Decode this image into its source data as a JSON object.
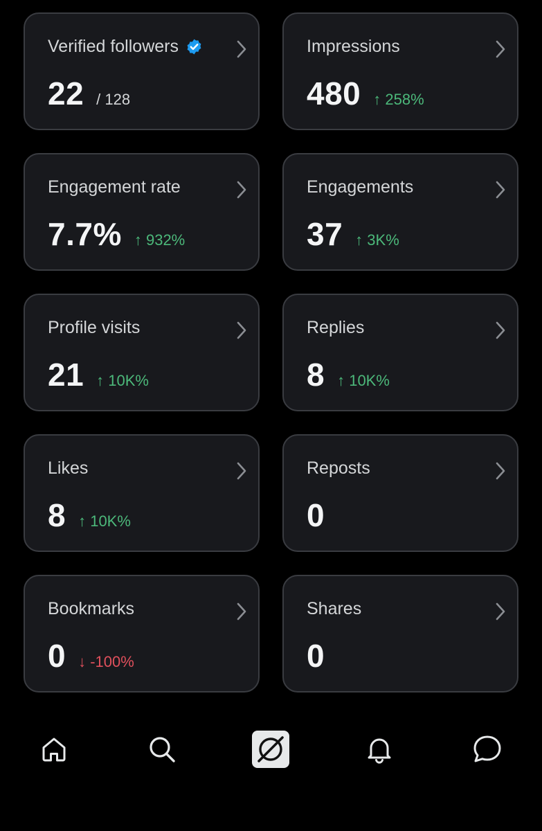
{
  "colors": {
    "background": "#000000",
    "card_background": "#18191d",
    "card_border": "#3a3c41",
    "positive": "#4cb87a",
    "negative": "#e0505c",
    "verified": "#1d9bf0"
  },
  "cards": [
    {
      "title": "Verified followers",
      "value": "22",
      "sub": "/ 128",
      "icon": "verified-badge-icon"
    },
    {
      "title": "Impressions",
      "value": "480",
      "delta": "↑ 258%",
      "trend": "up"
    },
    {
      "title": "Engagement rate",
      "value": "7.7%",
      "delta": "↑ 932%",
      "trend": "up"
    },
    {
      "title": "Engagements",
      "value": "37",
      "delta": "↑ 3K%",
      "trend": "up"
    },
    {
      "title": "Profile visits",
      "value": "21",
      "delta": "↑ 10K%",
      "trend": "up"
    },
    {
      "title": "Replies",
      "value": "8",
      "delta": "↑ 10K%",
      "trend": "up"
    },
    {
      "title": "Likes",
      "value": "8",
      "delta": "↑ 10K%",
      "trend": "up"
    },
    {
      "title": "Reposts",
      "value": "0"
    },
    {
      "title": "Bookmarks",
      "value": "0",
      "delta": "↓ -100%",
      "trend": "down"
    },
    {
      "title": "Shares",
      "value": "0"
    }
  ],
  "nav": {
    "items": [
      "home-icon",
      "search-icon",
      "grok-icon",
      "notifications-icon",
      "messages-icon"
    ]
  }
}
